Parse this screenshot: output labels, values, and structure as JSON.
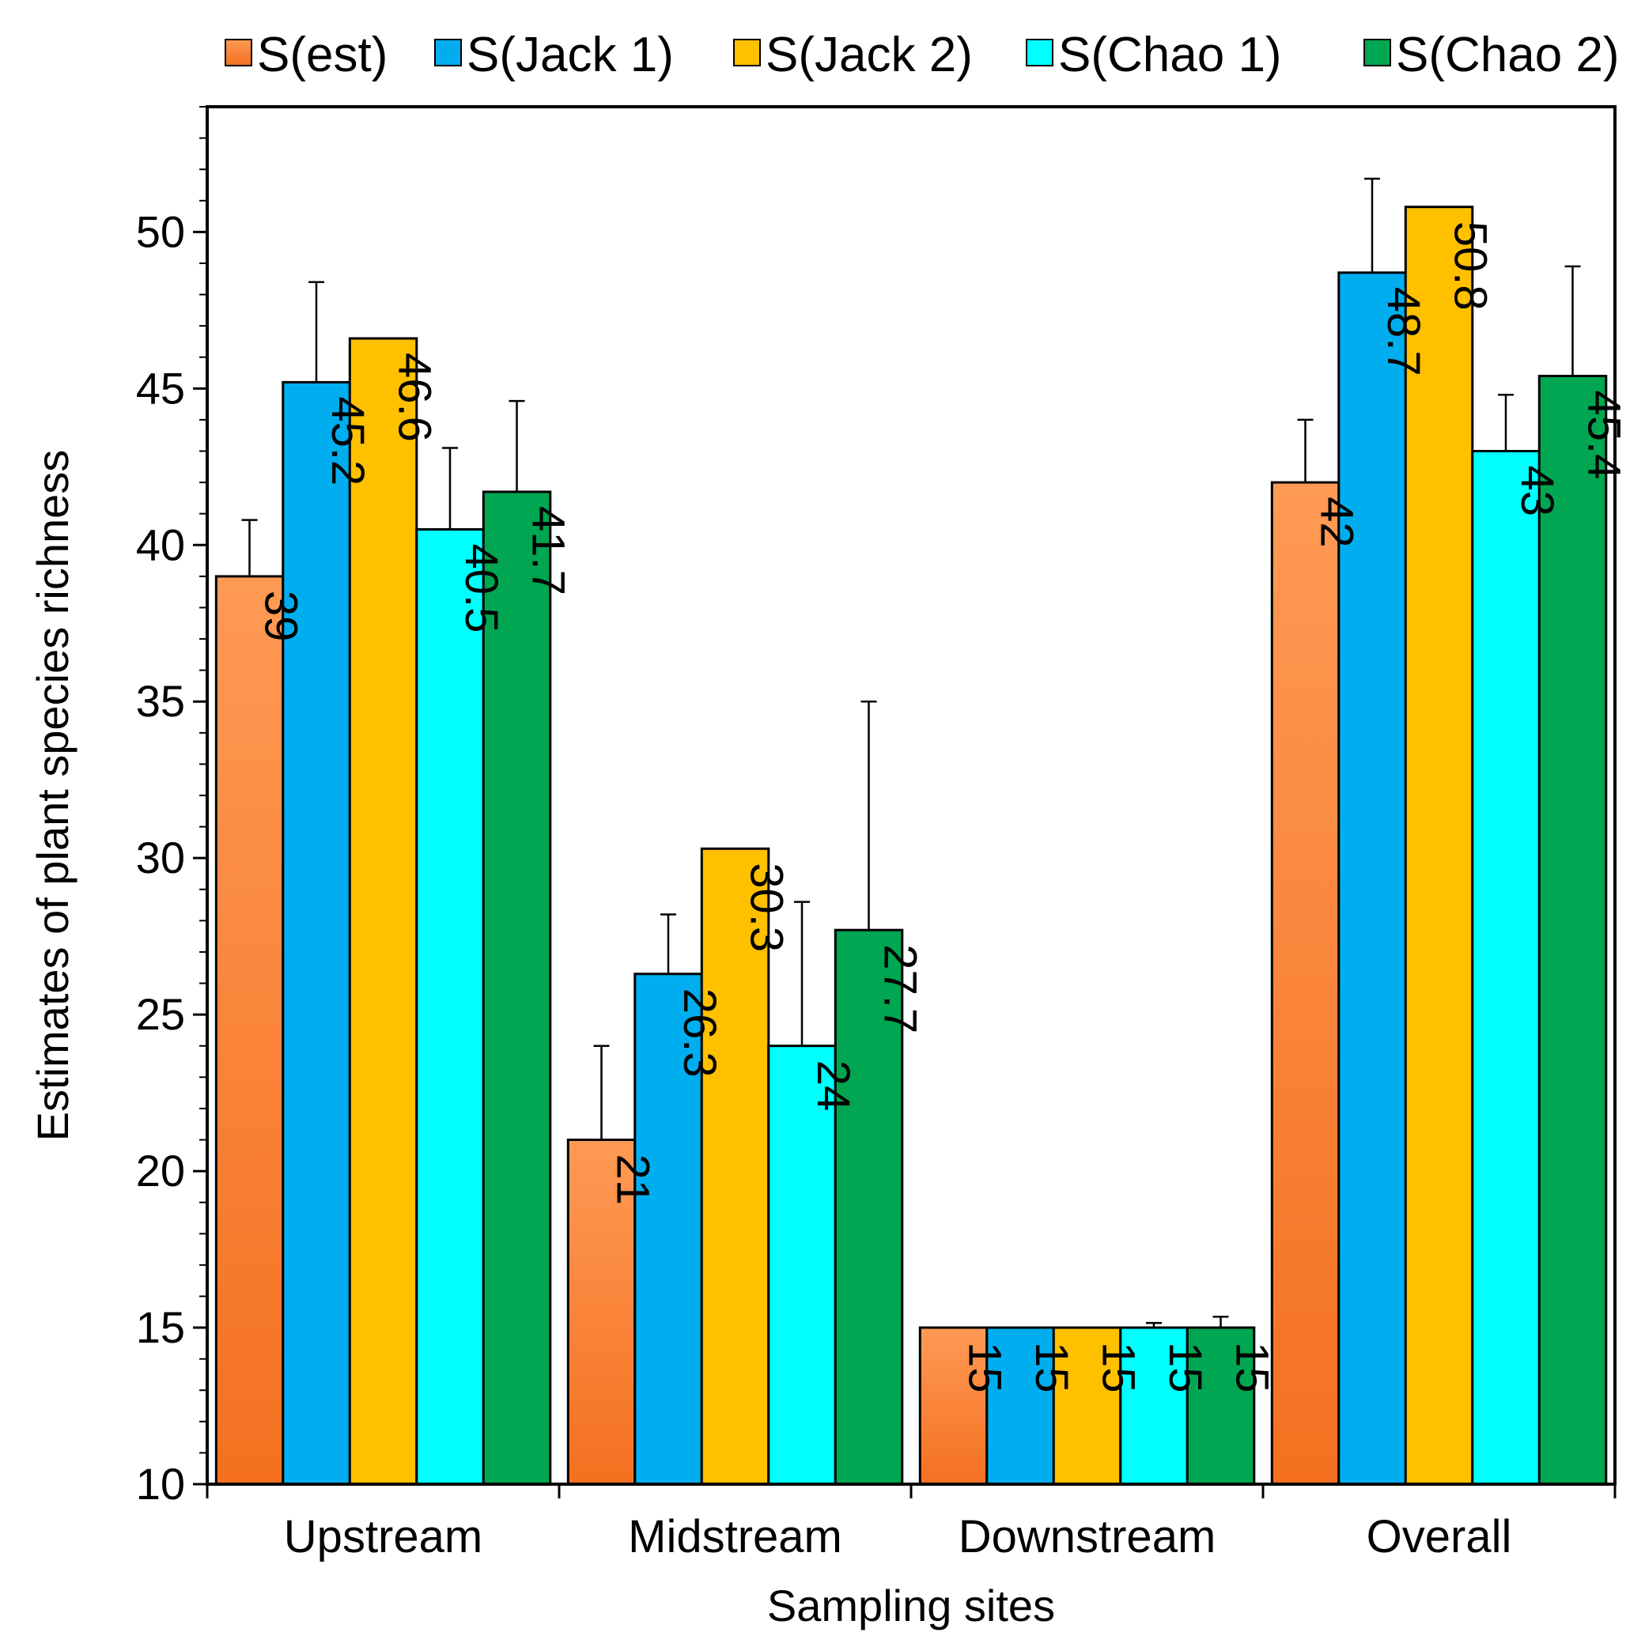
{
  "chart_data": {
    "type": "bar",
    "title": "",
    "xlabel": "Sampling sites",
    "ylabel": "Estimates of plant species richness",
    "ylim": [
      10,
      54
    ],
    "yticks": [
      10,
      15,
      20,
      25,
      30,
      35,
      40,
      45,
      50
    ],
    "grid": false,
    "legend_position": "top",
    "categories": [
      "Upstream",
      "Midstream",
      "Downstream",
      "Overall"
    ],
    "series": [
      {
        "name": "S(est)",
        "color": "#f47020",
        "color_light": "#ff9a55",
        "values": [
          39,
          21,
          15,
          42
        ],
        "errors": [
          1.8,
          3.0,
          0,
          2.0
        ],
        "labels": [
          "39",
          "21",
          "15",
          "42"
        ]
      },
      {
        "name": "S(Jack 1)",
        "color": "#00aeef",
        "color_light": "#00aeef",
        "values": [
          45.2,
          26.3,
          15,
          48.7
        ],
        "errors": [
          3.2,
          1.9,
          0,
          3.0
        ],
        "labels": [
          "45.2",
          "26.3",
          "15",
          "48.7"
        ]
      },
      {
        "name": "S(Jack 2)",
        "color": "#ffc000",
        "color_light": "#ffc000",
        "values": [
          46.6,
          30.3,
          15,
          50.8
        ],
        "errors": [
          0,
          0,
          0,
          0
        ],
        "labels": [
          "46.6",
          "30.3",
          "15",
          "50.8"
        ]
      },
      {
        "name": "S(Chao 1)",
        "color": "#00ffff",
        "color_light": "#00ffff",
        "values": [
          40.5,
          24,
          15,
          43
        ],
        "errors": [
          2.6,
          4.6,
          0.15,
          1.8
        ],
        "labels": [
          "40.5",
          "24",
          "15",
          "43"
        ]
      },
      {
        "name": "S(Chao 2)",
        "color": "#00a651",
        "color_light": "#00a651",
        "values": [
          41.7,
          27.7,
          15,
          45.4
        ],
        "errors": [
          2.9,
          7.3,
          0.35,
          3.5
        ],
        "labels": [
          "41.7",
          "27.7",
          "15",
          "45.4"
        ]
      }
    ]
  }
}
